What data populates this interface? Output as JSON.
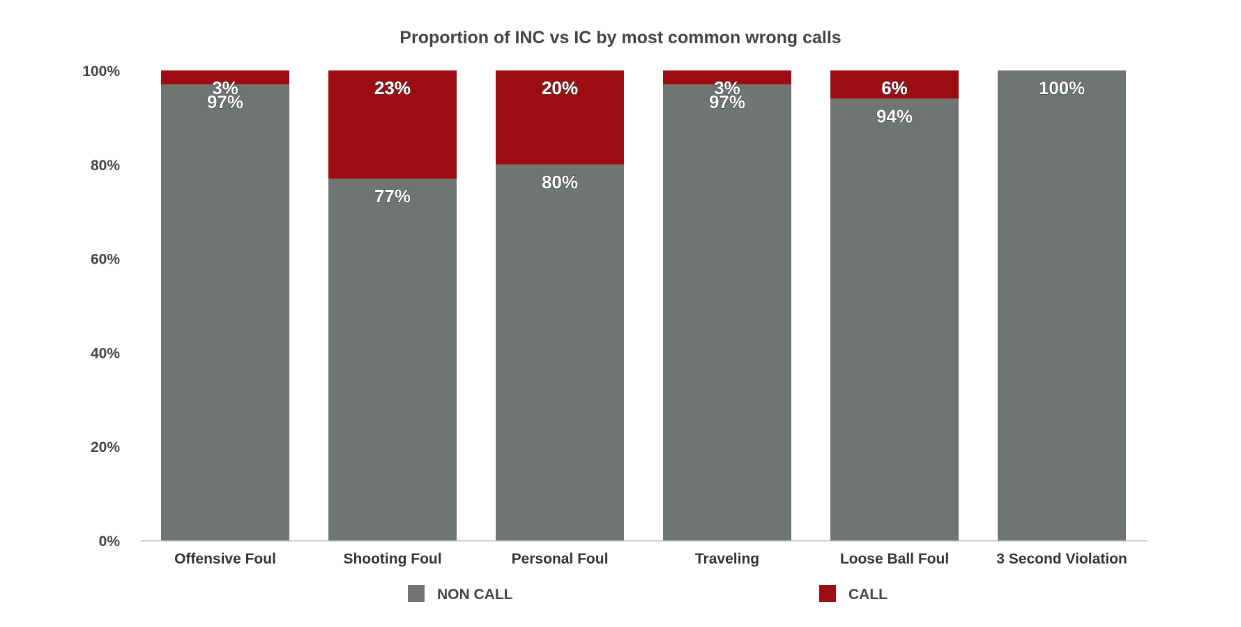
{
  "chart_data": {
    "type": "bar",
    "stacked": true,
    "title": "Proportion of INC vs IC by most common wrong calls",
    "categories": [
      "Offensive Foul",
      "Shooting Foul",
      "Personal Foul",
      "Traveling",
      "Loose Ball Foul",
      "3 Second Violation"
    ],
    "series": [
      {
        "name": "NON CALL",
        "color": "#6f7572",
        "values": [
          97,
          77,
          80,
          97,
          94,
          100
        ],
        "labels": [
          "97%",
          "77%",
          "80%",
          "97%",
          "94%",
          "100%"
        ]
      },
      {
        "name": "CALL",
        "color": "#9a0d12",
        "values": [
          3,
          23,
          20,
          3,
          6,
          0
        ],
        "labels": [
          "3%",
          "23%",
          "20%",
          "3%",
          "6%",
          ""
        ]
      }
    ],
    "ylim": [
      0,
      100
    ],
    "yticks": [
      "0%",
      "20%",
      "40%",
      "60%",
      "80%",
      "100%"
    ],
    "grid": false,
    "legend_position": "bottom"
  }
}
